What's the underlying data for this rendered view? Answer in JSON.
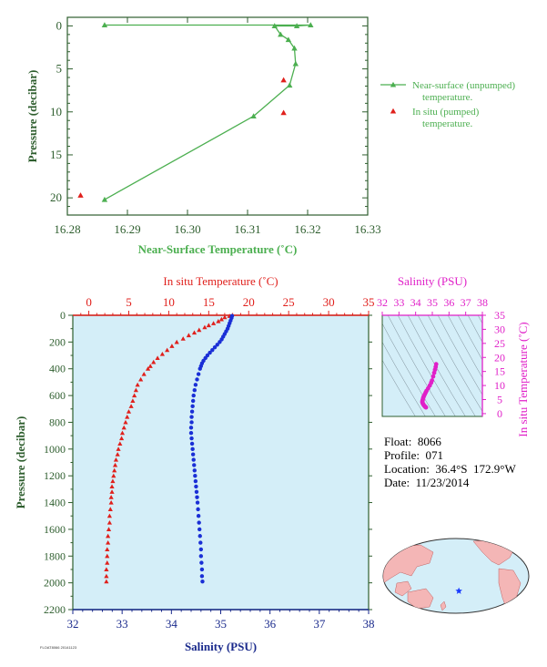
{
  "colors": {
    "green": "#4caf50",
    "axis_green": "#2e5e2e",
    "red": "#e0201c",
    "blue": "#1a2fd6",
    "magenta": "#e020c8",
    "navy": "#1a2a8c",
    "plot_bg": "#d4eef8"
  },
  "info": {
    "float": "Float:  8066",
    "profile": "Profile:  071",
    "location": "Location:  36.4°S  172.9°W",
    "date": "Date:  11/23/2014"
  },
  "footer_code": "FLOAT8066 20141123",
  "chart_data": [
    {
      "type": "line",
      "name": "near-surface",
      "xlabel": "Near-Surface Temperature (˚C)",
      "ylabel": "Pressure (decibar)",
      "xlim": [
        16.28,
        16.33
      ],
      "ylim": [
        22,
        -1
      ],
      "x_ticks": [
        "16.28",
        "16.29",
        "16.30",
        "16.31",
        "16.32",
        "16.33"
      ],
      "y_ticks": [
        "0",
        "5",
        "10",
        "15",
        "20"
      ],
      "series": [
        {
          "name": "Near-surface (unpumped) temperature.",
          "style": "line-triangle",
          "points": [
            [
              16.2862,
              -0.1
            ],
            [
              16.3205,
              -0.1
            ],
            [
              16.3182,
              0
            ],
            [
              16.3145,
              0
            ],
            [
              16.3155,
              1
            ],
            [
              16.3168,
              1.6
            ],
            [
              16.3178,
              2.6
            ],
            [
              16.318,
              4.4
            ],
            [
              16.317,
              6.9
            ],
            [
              16.311,
              10.5
            ],
            [
              16.2862,
              20.2
            ]
          ]
        },
        {
          "name": "In situ (pumped) temperature.",
          "style": "triangle",
          "points": [
            [
              16.316,
              6.3
            ],
            [
              16.316,
              10.1
            ],
            [
              16.2822,
              19.7
            ]
          ]
        }
      ],
      "legend": {
        "items": [
          "Near-surface (unpumped)",
          "temperature.",
          "In situ (pumped)",
          "temperature."
        ],
        "position": "right"
      }
    },
    {
      "type": "scatter",
      "name": "profile",
      "top_xlabel": "In situ Temperature (˚C)",
      "bottom_xlabel": "Salinity (PSU)",
      "ylabel": "Pressure (decibar)",
      "top_xlim": [
        -2,
        35
      ],
      "top_ticks": [
        "0",
        "5",
        "10",
        "15",
        "20",
        "25",
        "30",
        "35"
      ],
      "bottom_xlim": [
        32,
        38
      ],
      "bottom_ticks": [
        "32",
        "33",
        "34",
        "35",
        "36",
        "37",
        "38"
      ],
      "ylim": [
        0,
        2200
      ],
      "y_ticks": [
        "0",
        "200",
        "400",
        "600",
        "800",
        "1000",
        "1200",
        "1400",
        "1600",
        "1800",
        "2000",
        "2200"
      ],
      "temperature": [
        [
          17.6,
          5
        ],
        [
          17.0,
          15
        ],
        [
          16.6,
          30
        ],
        [
          16.2,
          45
        ],
        [
          15.6,
          60
        ],
        [
          15.0,
          75
        ],
        [
          14.5,
          90
        ],
        [
          13.8,
          110
        ],
        [
          13.2,
          130
        ],
        [
          12.5,
          150
        ],
        [
          11.8,
          175
        ],
        [
          11.0,
          200
        ],
        [
          10.4,
          230
        ],
        [
          9.8,
          260
        ],
        [
          9.2,
          290
        ],
        [
          8.6,
          320
        ],
        [
          8.1,
          350
        ],
        [
          7.7,
          380
        ],
        [
          7.4,
          400
        ],
        [
          6.9,
          440
        ],
        [
          6.5,
          480
        ],
        [
          6.1,
          520
        ],
        [
          5.9,
          560
        ],
        [
          5.7,
          600
        ],
        [
          5.5,
          640
        ],
        [
          5.3,
          680
        ],
        [
          5.0,
          720
        ],
        [
          4.8,
          760
        ],
        [
          4.6,
          800
        ],
        [
          4.4,
          840
        ],
        [
          4.2,
          880
        ],
        [
          4.1,
          920
        ],
        [
          3.9,
          960
        ],
        [
          3.7,
          1000
        ],
        [
          3.6,
          1040
        ],
        [
          3.4,
          1080
        ],
        [
          3.3,
          1120
        ],
        [
          3.2,
          1160
        ],
        [
          3.1,
          1200
        ],
        [
          3.0,
          1240
        ],
        [
          2.9,
          1280
        ],
        [
          2.9,
          1320
        ],
        [
          2.8,
          1360
        ],
        [
          2.8,
          1400
        ],
        [
          2.7,
          1450
        ],
        [
          2.6,
          1500
        ],
        [
          2.6,
          1550
        ],
        [
          2.5,
          1600
        ],
        [
          2.4,
          1650
        ],
        [
          2.4,
          1700
        ],
        [
          2.3,
          1750
        ],
        [
          2.3,
          1800
        ],
        [
          2.3,
          1850
        ],
        [
          2.2,
          1900
        ],
        [
          2.2,
          1950
        ],
        [
          2.2,
          1990
        ]
      ],
      "salinity": [
        [
          35.23,
          5
        ],
        [
          35.22,
          20
        ],
        [
          35.2,
          40
        ],
        [
          35.18,
          60
        ],
        [
          35.16,
          80
        ],
        [
          35.14,
          100
        ],
        [
          35.11,
          120
        ],
        [
          35.08,
          140
        ],
        [
          35.05,
          160
        ],
        [
          35.02,
          180
        ],
        [
          34.98,
          200
        ],
        [
          34.93,
          220
        ],
        [
          34.88,
          240
        ],
        [
          34.83,
          260
        ],
        [
          34.78,
          280
        ],
        [
          34.73,
          300
        ],
        [
          34.69,
          320
        ],
        [
          34.65,
          340
        ],
        [
          34.62,
          360
        ],
        [
          34.6,
          380
        ],
        [
          34.58,
          400
        ],
        [
          34.55,
          440
        ],
        [
          34.52,
          480
        ],
        [
          34.49,
          520
        ],
        [
          34.47,
          560
        ],
        [
          34.45,
          600
        ],
        [
          34.44,
          640
        ],
        [
          34.43,
          680
        ],
        [
          34.42,
          720
        ],
        [
          34.41,
          760
        ],
        [
          34.41,
          800
        ],
        [
          34.4,
          840
        ],
        [
          34.4,
          880
        ],
        [
          34.41,
          920
        ],
        [
          34.42,
          960
        ],
        [
          34.43,
          1000
        ],
        [
          34.44,
          1040
        ],
        [
          34.45,
          1080
        ],
        [
          34.46,
          1120
        ],
        [
          34.47,
          1160
        ],
        [
          34.48,
          1200
        ],
        [
          34.49,
          1240
        ],
        [
          34.5,
          1280
        ],
        [
          34.51,
          1320
        ],
        [
          34.52,
          1360
        ],
        [
          34.53,
          1400
        ],
        [
          34.54,
          1450
        ],
        [
          34.55,
          1500
        ],
        [
          34.56,
          1550
        ],
        [
          34.57,
          1600
        ],
        [
          34.58,
          1650
        ],
        [
          34.59,
          1700
        ],
        [
          34.6,
          1750
        ],
        [
          34.6,
          1800
        ],
        [
          34.61,
          1850
        ],
        [
          34.62,
          1900
        ],
        [
          34.62,
          1950
        ],
        [
          34.63,
          1990
        ]
      ]
    },
    {
      "type": "scatter",
      "name": "ts-diagram",
      "top_xlabel": "Salinity (PSU)",
      "right_ylabel": "In situ Temperature (˚C)",
      "xlim": [
        32,
        38
      ],
      "x_ticks": [
        "32",
        "33",
        "34",
        "35",
        "36",
        "37",
        "38"
      ],
      "ylim": [
        -1,
        35
      ],
      "y_ticks": [
        "0",
        "5",
        "10",
        "15",
        "20",
        "25",
        "30",
        "35"
      ],
      "points": [
        [
          35.23,
          17.6
        ],
        [
          35.2,
          16.6
        ],
        [
          35.16,
          15.6
        ],
        [
          35.11,
          14.5
        ],
        [
          35.05,
          13.2
        ],
        [
          34.98,
          11.8
        ],
        [
          34.93,
          11.0
        ],
        [
          34.85,
          10.0
        ],
        [
          34.75,
          9.0
        ],
        [
          34.65,
          8.1
        ],
        [
          34.6,
          7.5
        ],
        [
          34.55,
          6.9
        ],
        [
          34.5,
          6.3
        ],
        [
          34.47,
          5.9
        ],
        [
          34.45,
          5.5
        ],
        [
          34.43,
          5.0
        ],
        [
          34.41,
          4.6
        ],
        [
          34.4,
          4.2
        ],
        [
          34.41,
          3.9
        ],
        [
          34.43,
          3.6
        ],
        [
          34.46,
          3.3
        ],
        [
          34.49,
          3.0
        ],
        [
          34.52,
          2.8
        ],
        [
          34.55,
          2.6
        ],
        [
          34.58,
          2.4
        ],
        [
          34.62,
          2.2
        ]
      ]
    },
    {
      "type": "map",
      "name": "location-map",
      "marker": {
        "lat": -36.4,
        "lon": -172.9
      }
    }
  ]
}
